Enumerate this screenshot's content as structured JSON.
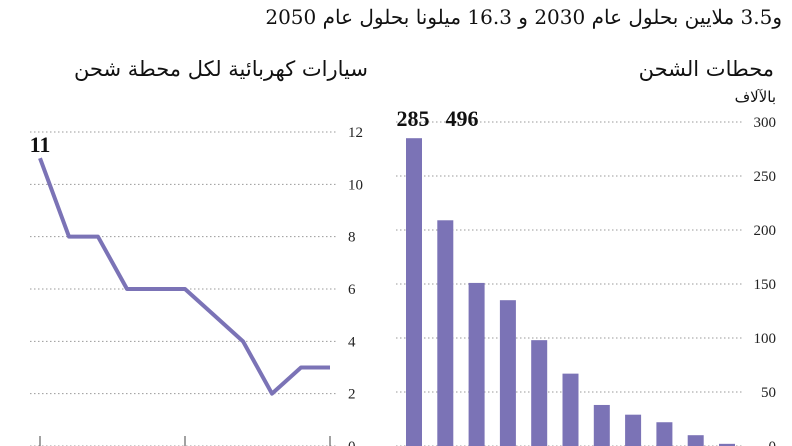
{
  "subtitle": "و3.5 ملايين بحلول عام 2030 و 16.3 ميلونا بحلول عام 2050",
  "colors": {
    "series": "#7B73B6",
    "grid": "#999999",
    "axis": "#444444"
  },
  "chart_data": [
    {
      "type": "line",
      "title": "سيارات كهربائية لكل محطة شحن",
      "ylim": [
        0,
        12
      ],
      "yticks": [
        0,
        2,
        4,
        6,
        8,
        10,
        12
      ],
      "values": [
        11,
        8,
        8,
        6,
        6,
        6,
        5,
        4,
        2,
        3,
        3
      ],
      "annotation": "11",
      "grid": true
    },
    {
      "type": "bar",
      "title": "محطات الشحن",
      "unit": "بالآلاف",
      "ylim": [
        0,
        300
      ],
      "yticks": [
        0,
        50,
        100,
        150,
        200,
        250,
        300
      ],
      "values": [
        285,
        209,
        151,
        135,
        98,
        67,
        38,
        29,
        22,
        10,
        2
      ],
      "annotations": [
        "285",
        "496"
      ],
      "grid": true
    }
  ]
}
